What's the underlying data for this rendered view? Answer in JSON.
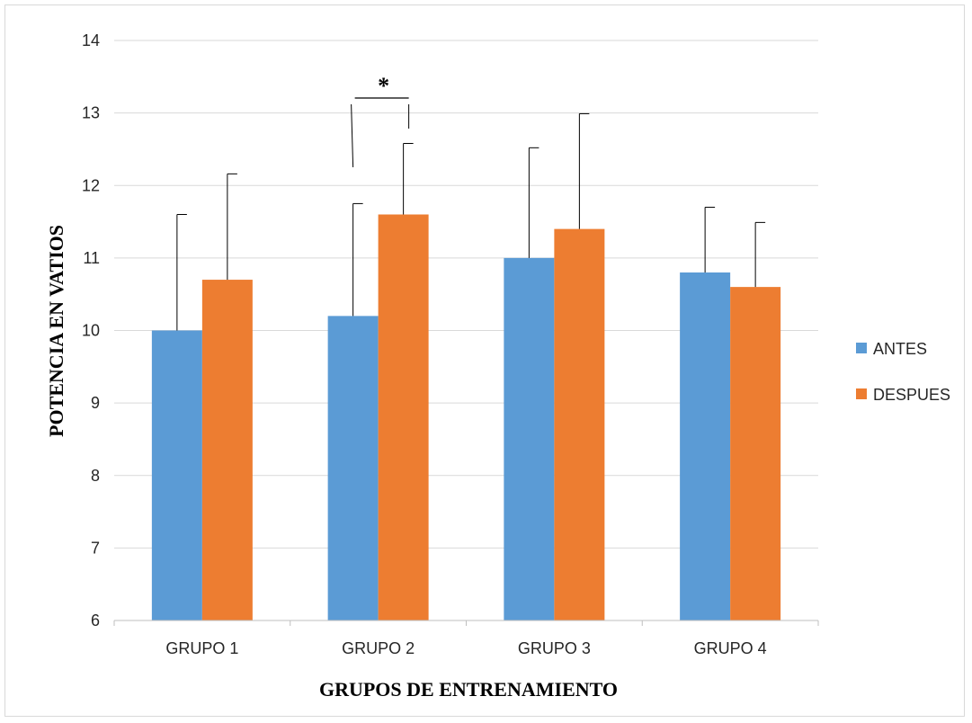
{
  "chart_data": {
    "type": "bar",
    "categories": [
      "GRUPO 1",
      "GRUPO 2",
      "GRUPO 3",
      "GRUPO 4"
    ],
    "series": [
      {
        "name": "ANTES",
        "values": [
          10.0,
          10.2,
          11.0,
          10.8
        ],
        "error": [
          1.6,
          1.55,
          1.52,
          0.9
        ],
        "color": "#5b9bd5"
      },
      {
        "name": "DESPUES",
        "values": [
          10.7,
          11.6,
          11.4,
          10.6
        ],
        "error": [
          1.46,
          0.98,
          1.59,
          0.89
        ],
        "color": "#ed7d31"
      }
    ],
    "xlabel": "GRUPOS DE ENTRENAMIENTO",
    "ylabel": "POTENCIA EN VATIOS",
    "ylim": [
      6,
      14
    ],
    "yticks": [
      6,
      7,
      8,
      9,
      10,
      11,
      12,
      13,
      14
    ],
    "grid": true,
    "legend_position": "right",
    "annotations": [
      {
        "text": "*",
        "category": "GRUPO 2"
      }
    ]
  }
}
